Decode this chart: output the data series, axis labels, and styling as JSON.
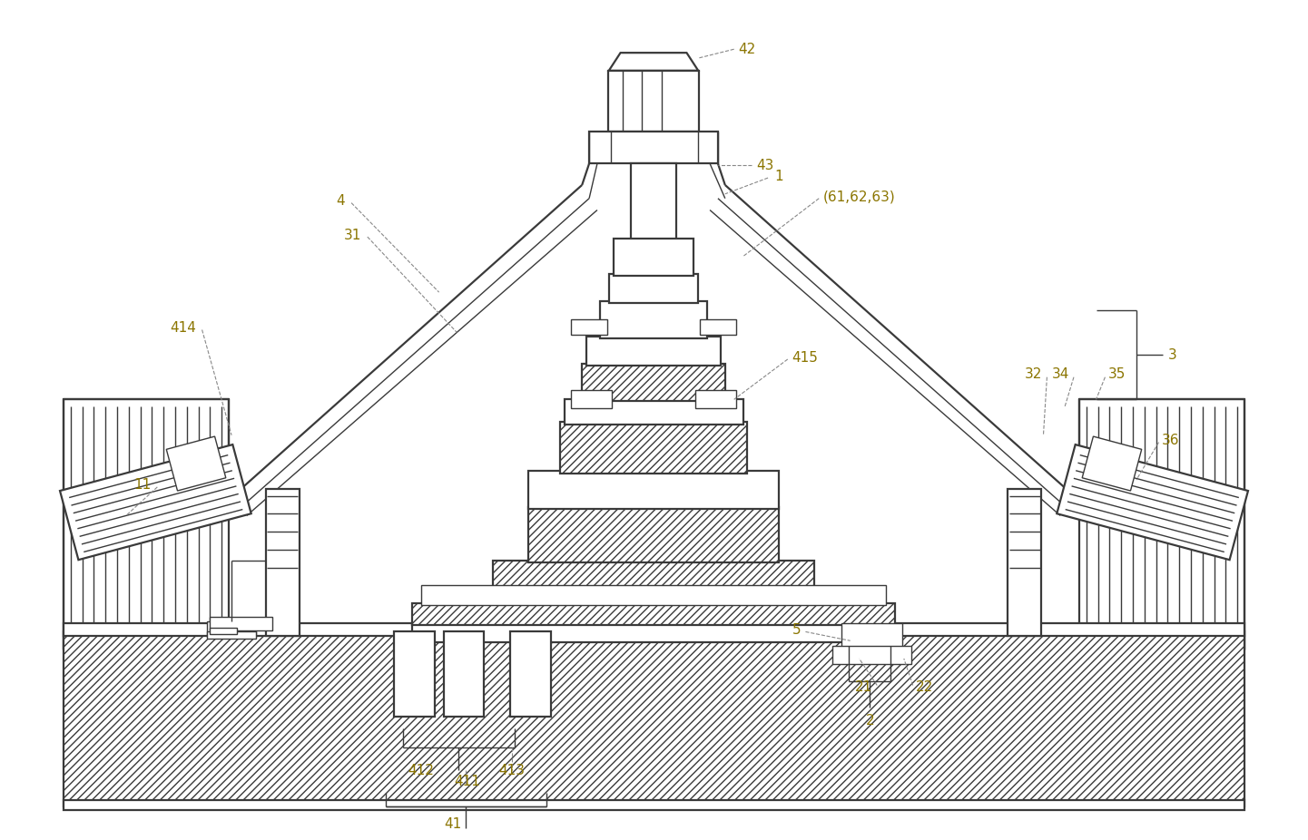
{
  "bg_color": "#ffffff",
  "line_color": "#3a3a3a",
  "label_color": "#8B7500",
  "label_fontsize": 11,
  "line_width": 1.0,
  "fig_width": 14.41,
  "fig_height": 9.26
}
